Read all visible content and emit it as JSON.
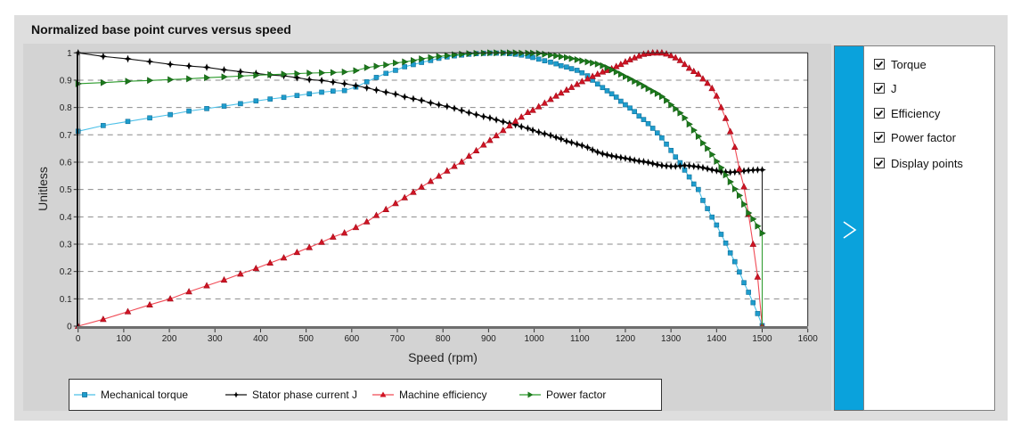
{
  "title": "Normalized base point curves versus speed",
  "side_panel": {
    "toggle_icon": "chevron-right-icon",
    "options": [
      {
        "label": "Torque",
        "checked": true
      },
      {
        "label": "J",
        "checked": true
      },
      {
        "label": "Efficiency",
        "checked": true
      },
      {
        "label": "Power factor",
        "checked": true
      },
      {
        "label": "Display points",
        "checked": true
      }
    ]
  },
  "chart_data": {
    "type": "line",
    "title": "Normalized base point curves versus speed",
    "xlabel": "Speed (rpm)",
    "ylabel": "Unitless",
    "xlim": [
      0,
      1600
    ],
    "ylim": [
      0,
      1
    ],
    "xticks": [
      "0",
      "100",
      "200",
      "300",
      "400",
      "500",
      "600",
      "700",
      "800",
      "900",
      "1000",
      "1100",
      "1200",
      "1300",
      "1400",
      "1500",
      "1600"
    ],
    "yticks": [
      "0",
      "0.1",
      "0.2",
      "0.3",
      "0.4",
      "0.5",
      "0.6",
      "0.7",
      "0.8",
      "0.9",
      "1"
    ],
    "grid": "horizontal dashed",
    "legend_position": "bottom",
    "x": [
      0,
      55,
      109,
      157,
      202,
      243,
      282,
      320,
      356,
      390,
      421,
      451,
      480,
      507,
      534,
      559,
      584,
      609,
      633,
      654,
      675,
      696,
      716,
      735,
      753,
      773,
      791,
      809,
      825,
      841,
      857,
      873,
      889,
      903,
      917,
      932,
      946,
      959,
      972,
      986,
      997,
      1010,
      1023,
      1036,
      1048,
      1059,
      1071,
      1082,
      1094,
      1105,
      1117,
      1128,
      1139,
      1150,
      1160,
      1170,
      1180,
      1190,
      1200,
      1210,
      1220,
      1230,
      1240,
      1250,
      1260,
      1270,
      1280,
      1290,
      1300,
      1310,
      1320,
      1330,
      1340,
      1350,
      1360,
      1370,
      1380,
      1390,
      1400,
      1410,
      1420,
      1430,
      1440,
      1450,
      1460,
      1470,
      1480,
      1490,
      1500
    ],
    "series": [
      {
        "key": "torque",
        "name": "Mechanical torque",
        "marker": "square",
        "color": "#4cc0e8",
        "marker_color": "#1e9dcd",
        "marker_edge": "#0f6f99",
        "drop_to_zero_at_end": false,
        "values": [
          0.713,
          0.734,
          0.749,
          0.762,
          0.774,
          0.787,
          0.796,
          0.805,
          0.814,
          0.824,
          0.831,
          0.837,
          0.844,
          0.85,
          0.856,
          0.86,
          0.862,
          0.875,
          0.894,
          0.91,
          0.925,
          0.936,
          0.949,
          0.957,
          0.965,
          0.972,
          0.98,
          0.985,
          0.989,
          0.992,
          0.995,
          0.997,
          0.998,
          0.999,
          0.999,
          0.999,
          0.997,
          0.995,
          0.992,
          0.988,
          0.983,
          0.977,
          0.971,
          0.966,
          0.96,
          0.953,
          0.948,
          0.942,
          0.936,
          0.927,
          0.916,
          0.9,
          0.886,
          0.873,
          0.861,
          0.85,
          0.838,
          0.823,
          0.81,
          0.798,
          0.785,
          0.769,
          0.756,
          0.741,
          0.724,
          0.707,
          0.689,
          0.666,
          0.643,
          0.619,
          0.598,
          0.571,
          0.546,
          0.52,
          0.5,
          0.46,
          0.43,
          0.399,
          0.37,
          0.336,
          0.304,
          0.268,
          0.236,
          0.198,
          0.159,
          0.124,
          0.086,
          0.046,
          0.002
        ]
      },
      {
        "key": "current",
        "name": "Stator phase current J",
        "marker": "star",
        "color": "#111111",
        "marker_color": "#000000",
        "marker_edge": "#000000",
        "drop_to_zero_at_end": true,
        "values": [
          1.0,
          0.987,
          0.978,
          0.968,
          0.958,
          0.952,
          0.947,
          0.938,
          0.931,
          0.925,
          0.919,
          0.916,
          0.909,
          0.902,
          0.899,
          0.893,
          0.887,
          0.88,
          0.872,
          0.864,
          0.856,
          0.849,
          0.839,
          0.832,
          0.826,
          0.817,
          0.81,
          0.804,
          0.797,
          0.789,
          0.781,
          0.774,
          0.767,
          0.762,
          0.755,
          0.748,
          0.742,
          0.737,
          0.73,
          0.724,
          0.717,
          0.71,
          0.704,
          0.698,
          0.691,
          0.685,
          0.677,
          0.672,
          0.666,
          0.661,
          0.654,
          0.645,
          0.637,
          0.631,
          0.627,
          0.623,
          0.62,
          0.617,
          0.614,
          0.611,
          0.607,
          0.604,
          0.602,
          0.599,
          0.595,
          0.591,
          0.588,
          0.586,
          0.585,
          0.585,
          0.586,
          0.588,
          0.587,
          0.585,
          0.583,
          0.58,
          0.576,
          0.572,
          0.569,
          0.565,
          0.564,
          0.563,
          0.564,
          0.565,
          0.568,
          0.57,
          0.571,
          0.572,
          0.572
        ]
      },
      {
        "key": "efficiency",
        "name": "Machine efficiency",
        "marker": "triangle-up",
        "color": "#f04a55",
        "marker_color": "#d01424",
        "marker_edge": "#a00a18",
        "drop_to_zero_at_end": false,
        "values": [
          0,
          0.025,
          0.053,
          0.078,
          0.1,
          0.126,
          0.148,
          0.169,
          0.191,
          0.211,
          0.231,
          0.25,
          0.27,
          0.288,
          0.307,
          0.326,
          0.341,
          0.361,
          0.382,
          0.405,
          0.427,
          0.449,
          0.47,
          0.49,
          0.509,
          0.53,
          0.549,
          0.568,
          0.585,
          0.601,
          0.622,
          0.642,
          0.663,
          0.68,
          0.697,
          0.716,
          0.733,
          0.75,
          0.765,
          0.782,
          0.79,
          0.803,
          0.816,
          0.83,
          0.842,
          0.853,
          0.864,
          0.874,
          0.885,
          0.895,
          0.905,
          0.914,
          0.922,
          0.93,
          0.936,
          0.942,
          0.95,
          0.958,
          0.967,
          0.975,
          0.982,
          0.989,
          0.995,
          0.998,
          1.0,
          1.0,
          1.0,
          0.996,
          0.99,
          0.982,
          0.972,
          0.958,
          0.944,
          0.932,
          0.922,
          0.905,
          0.889,
          0.87,
          0.842,
          0.8,
          0.76,
          0.712,
          0.655,
          0.575,
          0.51,
          0.41,
          0.3,
          0.18,
          0.0
        ]
      },
      {
        "key": "power_factor",
        "name": "Power factor",
        "marker": "triangle-right",
        "color": "#2a9a2a",
        "marker_color": "#1c7a1c",
        "marker_edge": "#145c14",
        "drop_to_zero_at_end": true,
        "values": [
          0.887,
          0.891,
          0.896,
          0.899,
          0.902,
          0.905,
          0.909,
          0.912,
          0.915,
          0.918,
          0.92,
          0.922,
          0.924,
          0.926,
          0.927,
          0.928,
          0.93,
          0.935,
          0.946,
          0.951,
          0.956,
          0.963,
          0.967,
          0.972,
          0.978,
          0.983,
          0.987,
          0.99,
          0.993,
          0.995,
          0.997,
          0.998,
          0.999,
          1.0,
          1.0,
          1.0,
          1.0,
          1.0,
          0.999,
          0.999,
          0.999,
          0.998,
          0.995,
          0.992,
          0.989,
          0.986,
          0.983,
          0.979,
          0.975,
          0.971,
          0.967,
          0.963,
          0.959,
          0.953,
          0.946,
          0.938,
          0.93,
          0.922,
          0.913,
          0.905,
          0.896,
          0.888,
          0.879,
          0.869,
          0.86,
          0.851,
          0.84,
          0.826,
          0.81,
          0.795,
          0.78,
          0.762,
          0.739,
          0.717,
          0.694,
          0.67,
          0.65,
          0.628,
          0.603,
          0.58,
          0.553,
          0.528,
          0.502,
          0.478,
          0.446,
          0.414,
          0.392,
          0.366,
          0.34
        ]
      }
    ]
  }
}
